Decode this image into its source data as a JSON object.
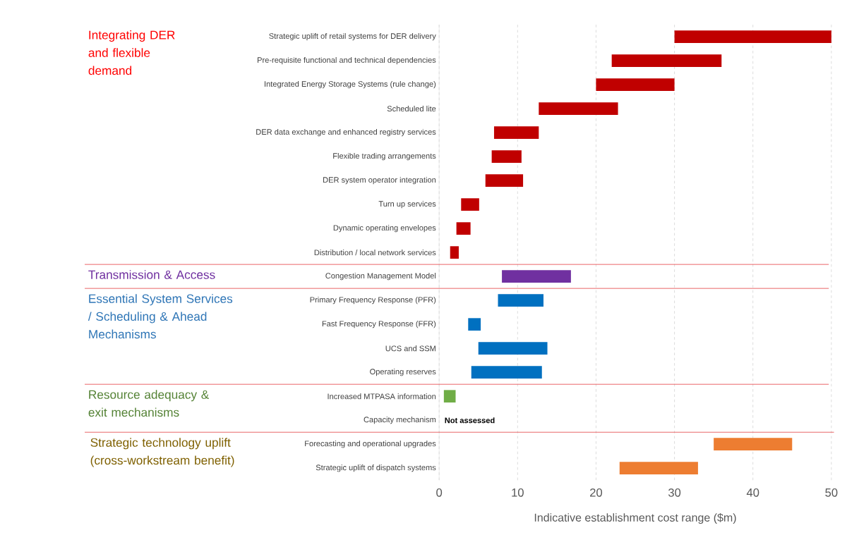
{
  "chart_data": {
    "type": "bar",
    "orientation": "horizontal",
    "categories": [
      "Strategic uplift of retail systems for DER delivery",
      "Pre-requisite functional and technical dependencies",
      "Integrated Energy Storage Systems (rule change)",
      "Scheduled lite",
      "DER data exchange and enhanced registry services",
      "Flexible trading arrangements",
      "DER system operator integration",
      "Turn up services",
      "Dynamic operating envelopes",
      "Distribution / local network services",
      "Congestion Management Model",
      "Primary Frequency Response (PFR)",
      "Fast Frequency Response (FFR)",
      "UCS and SSM",
      "Operating reserves",
      "Increased MTPASA information",
      "Capacity mechanism",
      "Forecasting and operational upgrades",
      "Strategic uplift of dispatch systems"
    ],
    "base": [
      30,
      22,
      20,
      12.7,
      7.0,
      6.7,
      5.9,
      2.8,
      2.2,
      1.4,
      8.0,
      7.5,
      3.7,
      5.0,
      4.1,
      0.6,
      null,
      35,
      23
    ],
    "values": [
      20,
      14,
      10,
      10.1,
      5.7,
      3.8,
      4.8,
      2.3,
      1.8,
      1.1,
      8.8,
      5.8,
      1.6,
      8.8,
      9.0,
      1.5,
      null,
      10,
      10
    ],
    "colors": [
      "#c00000",
      "#c00000",
      "#c00000",
      "#c00000",
      "#c00000",
      "#c00000",
      "#c00000",
      "#c00000",
      "#c00000",
      "#c00000",
      "#7030a0",
      "#0070c0",
      "#0070c0",
      "#0070c0",
      "#0070c0",
      "#70ad47",
      "#70ad47",
      "#ed7d31",
      "#ed7d31"
    ],
    "xlim": [
      0,
      50
    ],
    "xticks": [
      0,
      10,
      20,
      30,
      40,
      50
    ],
    "grid": "x",
    "xlabel": "Indicative establishment cost range ($m)",
    "annotations": [
      "Integrating DER and flexible demand",
      "Transmission & Access",
      "Essential System Services / Scheduling & Ahead Mechanisms",
      "Resource adequacy & exit mechanisms",
      "Strategic technology uplift (cross-workstream benefit)",
      "Not assessed"
    ]
  }
}
